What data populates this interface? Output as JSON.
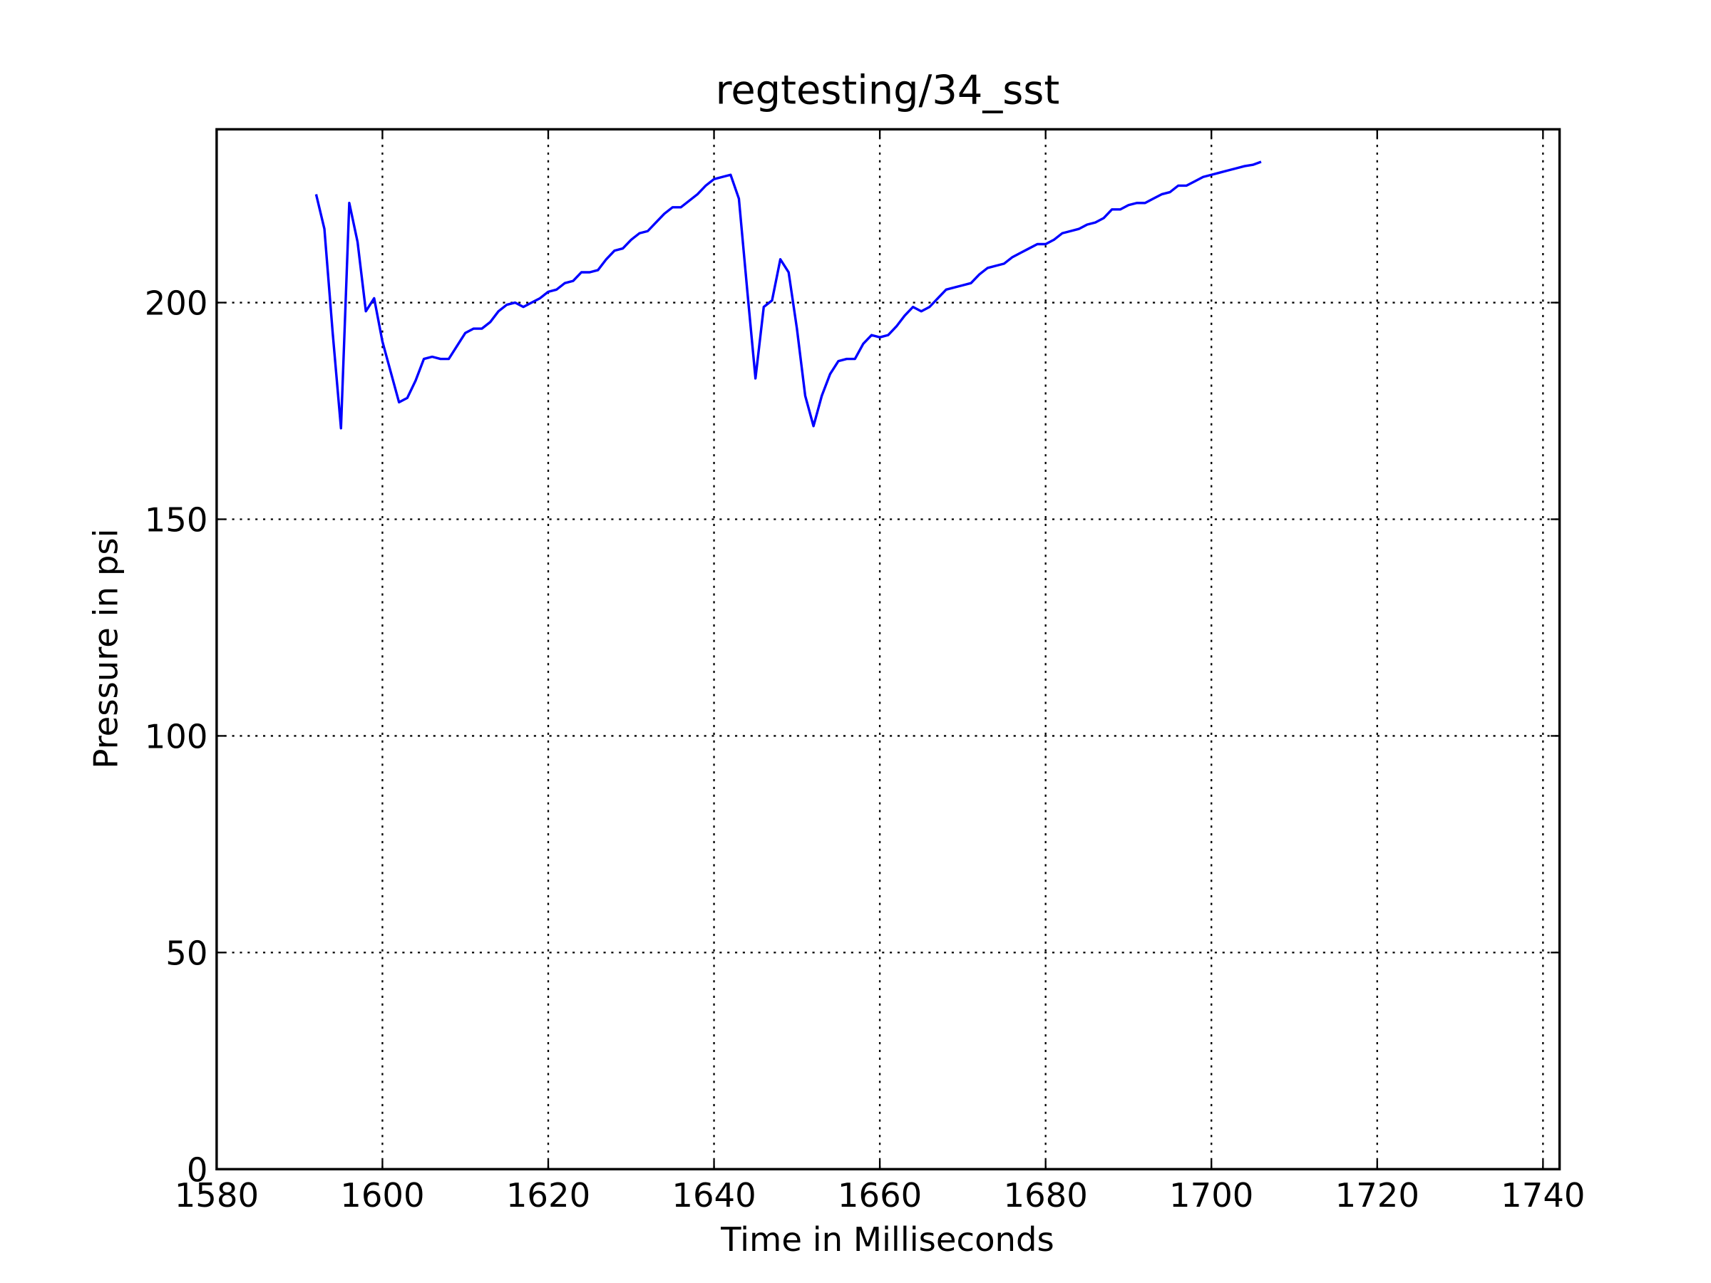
{
  "chart_data": {
    "type": "line",
    "title": "regtesting/34_sst",
    "x_label": "Time in Milliseconds",
    "y_label": "Pressure in psi",
    "x": [
      1592,
      1593,
      1594,
      1595,
      1596,
      1597,
      1598,
      1599,
      1600,
      1601,
      1602,
      1603,
      1604,
      1605,
      1606,
      1607,
      1608,
      1609,
      1610,
      1611,
      1612,
      1613,
      1614,
      1615,
      1616,
      1617,
      1618,
      1619,
      1620,
      1621,
      1622,
      1623,
      1624,
      1625,
      1626,
      1627,
      1628,
      1629,
      1630,
      1631,
      1632,
      1633,
      1634,
      1635,
      1636,
      1637,
      1638,
      1639,
      1640,
      1641,
      1642,
      1643,
      1644,
      1645,
      1646,
      1647,
      1648,
      1649,
      1650,
      1651,
      1652,
      1653,
      1654,
      1655,
      1656,
      1657,
      1658,
      1659,
      1660,
      1661,
      1662,
      1663,
      1664,
      1665,
      1666,
      1667,
      1668,
      1669,
      1670,
      1671,
      1672,
      1673,
      1674,
      1675,
      1676,
      1677,
      1678,
      1679,
      1680,
      1681,
      1682,
      1683,
      1684,
      1685,
      1686,
      1687,
      1688,
      1689,
      1690,
      1691,
      1692,
      1693,
      1694,
      1695,
      1696,
      1697,
      1698,
      1699,
      1700,
      1701,
      1702,
      1703,
      1704,
      1705,
      1706
    ],
    "series": [
      {
        "name": "pressure",
        "color": "#0000ff",
        "values": [
          225,
          217,
          193,
          171,
          223,
          214,
          198,
          201,
          191,
          184,
          177,
          178,
          182,
          187,
          187.5,
          187,
          187,
          190,
          193,
          194,
          194,
          195.5,
          198,
          199.5,
          200,
          199,
          200,
          201,
          202.5,
          203,
          204.5,
          205,
          207,
          207,
          207.5,
          210,
          212,
          212.5,
          214.5,
          216,
          216.5,
          218.5,
          220.5,
          222,
          222,
          223.5,
          225,
          227,
          228.5,
          229,
          229.5,
          224,
          203,
          182.5,
          199,
          200.5,
          210,
          207,
          194,
          178.5,
          171.5,
          178.5,
          183.5,
          186.5,
          187,
          187,
          190.5,
          192.5,
          192,
          192.5,
          194.5,
          197,
          199,
          198,
          199,
          201,
          203,
          203.5,
          204,
          204.5,
          206.5,
          208,
          208.5,
          209,
          210.5,
          211.5,
          212.5,
          213.5,
          213.5,
          214.5,
          216,
          216.5,
          217,
          218,
          218.5,
          219.5,
          221.5,
          221.5,
          222.5,
          223,
          223,
          224,
          225,
          225.5,
          227,
          227,
          228,
          229,
          229.5,
          230,
          230.5,
          231,
          231.5,
          231.8,
          232.5
        ]
      }
    ],
    "xlim": [
      1580,
      1742
    ],
    "ylim": [
      0,
      240
    ],
    "xticks": [
      1580,
      1600,
      1620,
      1640,
      1660,
      1680,
      1700,
      1720,
      1740
    ],
    "yticks": [
      0,
      50,
      100,
      150,
      200
    ],
    "grid": true
  }
}
